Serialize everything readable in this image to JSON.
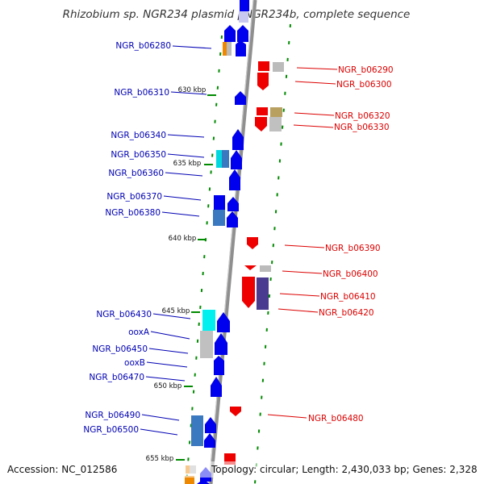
{
  "title": "Rhizobium sp. NGR234 plasmid pNGR234b, complete sequence",
  "footer": {
    "accession": "Accession: NC_012586",
    "topology": "Topology: circular; Length: 2,430,033 bp; Genes: 2,328"
  },
  "colors": {
    "forward_gene": "#0000ee",
    "reverse_gene": "#ee0000",
    "backbone": "#909090",
    "left_label": "#0000b4",
    "right_label": "#dc0000",
    "marker": "#008a00"
  },
  "scale_ticks": [
    "630 kbp",
    "635 kbp",
    "640 kbp",
    "645 kbp",
    "650 kbp",
    "655 kbp"
  ],
  "left_labels": [
    "NGR_b06280",
    "NGR_b06310",
    "NGR_b06340",
    "NGR_b06350",
    "NGR_b06360",
    "NGR_b06370",
    "NGR_b06380",
    "NGR_b06430",
    "ooxA",
    "NGR_b06450",
    "ooxB",
    "NGR_b06470",
    "NGR_b06490",
    "NGR_b06500"
  ],
  "right_labels": [
    "NGR_b06290",
    "NGR_b06300",
    "NGR_b06320",
    "NGR_b06330",
    "NGR_b06390",
    "NGR_b06400",
    "NGR_b06410",
    "NGR_b06420",
    "NGR_b06480"
  ]
}
